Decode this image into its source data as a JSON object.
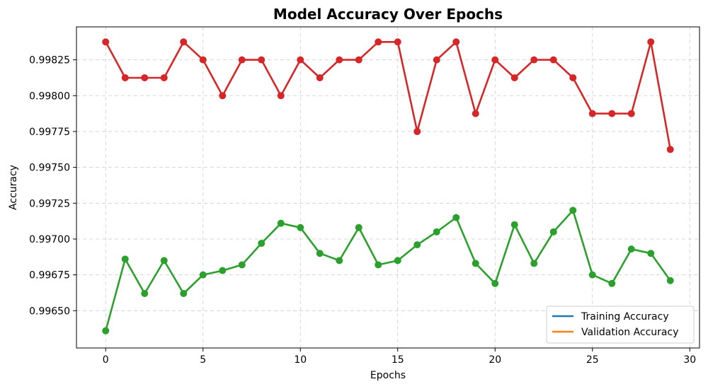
{
  "chart_data": {
    "type": "line",
    "title": "Model Accuracy Over Epochs",
    "xlabel": "Epochs",
    "ylabel": "Accuracy",
    "xlim": [
      -1.5,
      30.5
    ],
    "ylim": [
      0.99624,
      0.99848
    ],
    "xticks": [
      0,
      5,
      10,
      15,
      20,
      25,
      30
    ],
    "yticks": [
      0.9965,
      0.99675,
      0.997,
      0.99725,
      0.9975,
      0.99775,
      0.998,
      0.99825
    ],
    "ytick_labels": [
      "0.99650",
      "0.99675",
      "0.99700",
      "0.99725",
      "0.99750",
      "0.99775",
      "0.99800",
      "0.99825"
    ],
    "grid": true,
    "legend_position": "lower-right",
    "legend": [
      {
        "label": "Training Accuracy",
        "color": "#1f77b4"
      },
      {
        "label": "Validation Accuracy",
        "color": "#ff7f0e"
      }
    ],
    "series": [
      {
        "color": "#d62728",
        "x": [
          0,
          1,
          2,
          3,
          4,
          5,
          6,
          7,
          8,
          9,
          10,
          11,
          12,
          13,
          14,
          15,
          16,
          17,
          18,
          19,
          20,
          21,
          22,
          23,
          24,
          25,
          26,
          27,
          28,
          29
        ],
        "values": [
          0.998375,
          0.998125,
          0.998125,
          0.998125,
          0.998375,
          0.99825,
          0.998,
          0.99825,
          0.99825,
          0.998,
          0.99825,
          0.998125,
          0.99825,
          0.99825,
          0.998375,
          0.998375,
          0.99775,
          0.99825,
          0.998375,
          0.997875,
          0.99825,
          0.998125,
          0.99825,
          0.99825,
          0.998125,
          0.997875,
          0.997875,
          0.997875,
          0.998375,
          0.997625
        ]
      },
      {
        "color": "#2ca02c",
        "x": [
          0,
          1,
          2,
          3,
          4,
          5,
          6,
          7,
          8,
          9,
          10,
          11,
          12,
          13,
          14,
          15,
          16,
          17,
          18,
          19,
          20,
          21,
          22,
          23,
          24,
          25,
          26,
          27,
          28,
          29
        ],
        "values": [
          0.99636,
          0.99686,
          0.99662,
          0.99685,
          0.99662,
          0.99675,
          0.99678,
          0.99682,
          0.99697,
          0.99711,
          0.99708,
          0.9969,
          0.99685,
          0.99708,
          0.99682,
          0.99685,
          0.99696,
          0.99705,
          0.99715,
          0.99683,
          0.99669,
          0.9971,
          0.99683,
          0.99705,
          0.9972,
          0.99675,
          0.99669,
          0.99693,
          0.9969,
          0.99671
        ]
      }
    ]
  }
}
